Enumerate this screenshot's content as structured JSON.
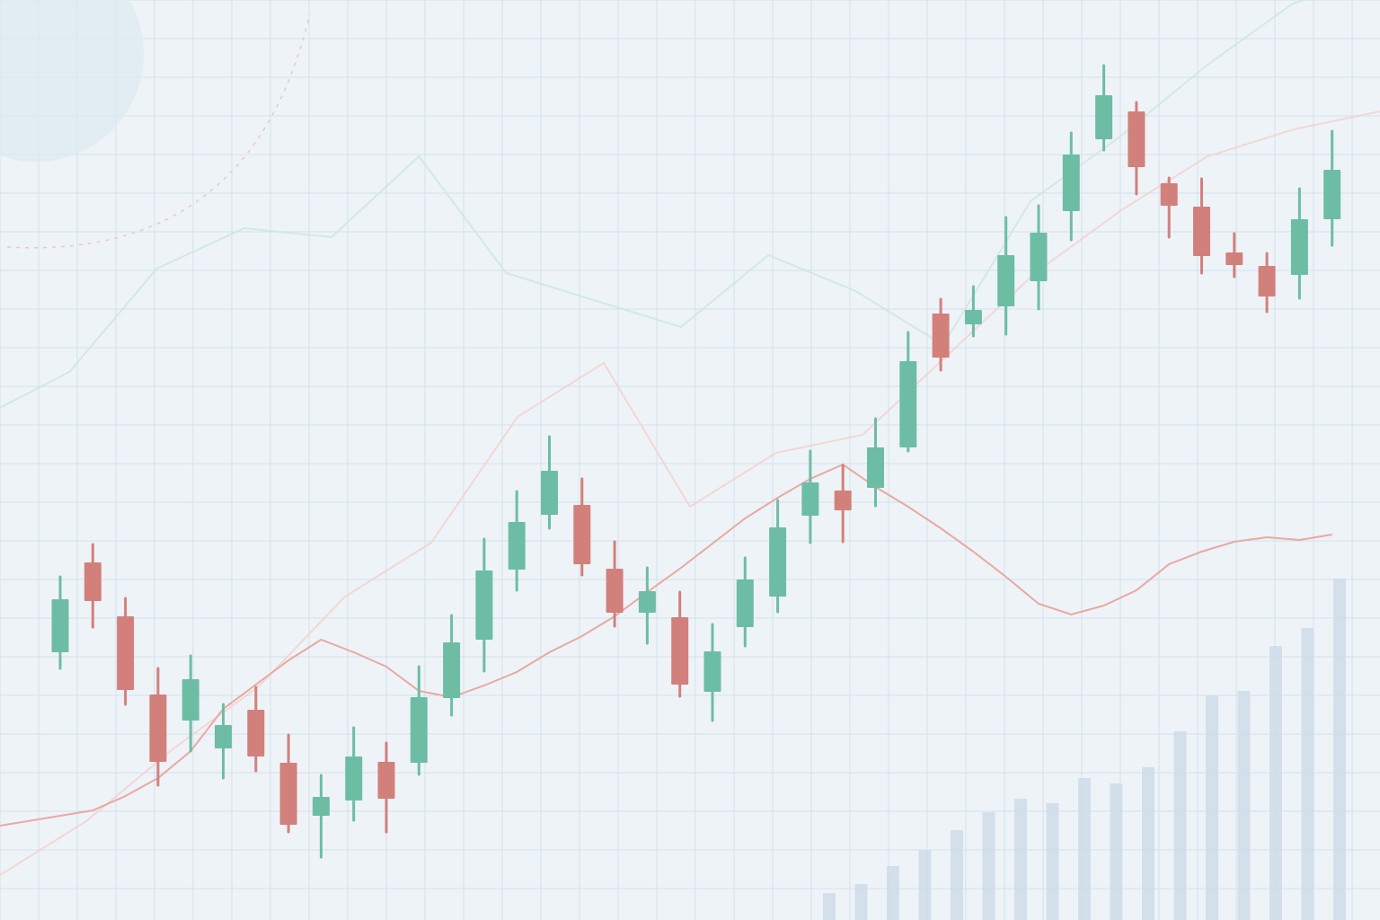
{
  "colors": {
    "background": "#eef3f7",
    "grid": "#d3e2ec",
    "up": "#6dbda5",
    "down": "#d2807c",
    "volume": "#c9dae7",
    "faint_line_teal": "#bfe0db",
    "faint_line_red": "#efc3bf"
  },
  "chart_data": {
    "type": "candlestick",
    "grid": true,
    "axes_visible": false,
    "ylim": [
      0,
      1024
    ],
    "candles": [
      {
        "open": 298,
        "close": 357,
        "high": 382,
        "low": 280
      },
      {
        "open": 398,
        "close": 355,
        "high": 418,
        "low": 326
      },
      {
        "open": 338,
        "close": 256,
        "high": 358,
        "low": 240
      },
      {
        "open": 251,
        "close": 176,
        "high": 280,
        "low": 150
      },
      {
        "open": 222,
        "close": 268,
        "high": 294,
        "low": 188
      },
      {
        "open": 191,
        "close": 217,
        "high": 240,
        "low": 158
      },
      {
        "open": 234,
        "close": 182,
        "high": 259,
        "low": 166
      },
      {
        "open": 175,
        "close": 106,
        "high": 206,
        "low": 98
      },
      {
        "open": 116,
        "close": 137,
        "high": 161,
        "low": 70
      },
      {
        "open": 133,
        "close": 182,
        "high": 214,
        "low": 111
      },
      {
        "open": 176,
        "close": 135,
        "high": 197,
        "low": 98
      },
      {
        "open": 175,
        "close": 248,
        "high": 282,
        "low": 162
      },
      {
        "open": 247,
        "close": 309,
        "high": 339,
        "low": 228
      },
      {
        "open": 312,
        "close": 389,
        "high": 424,
        "low": 277
      },
      {
        "open": 390,
        "close": 443,
        "high": 477,
        "low": 367
      },
      {
        "open": 451,
        "close": 500,
        "high": 538,
        "low": 436
      },
      {
        "open": 462,
        "close": 396,
        "high": 491,
        "low": 384
      },
      {
        "open": 391,
        "close": 342,
        "high": 421,
        "low": 327
      },
      {
        "open": 342,
        "close": 366,
        "high": 392,
        "low": 308
      },
      {
        "open": 337,
        "close": 262,
        "high": 365,
        "low": 249
      },
      {
        "open": 254,
        "close": 299,
        "high": 329,
        "low": 222
      },
      {
        "open": 326,
        "close": 379,
        "high": 403,
        "low": 305
      },
      {
        "open": 360,
        "close": 437,
        "high": 467,
        "low": 343
      },
      {
        "open": 450,
        "close": 487,
        "high": 522,
        "low": 420
      },
      {
        "open": 478,
        "close": 456,
        "high": 506,
        "low": 421
      },
      {
        "open": 481,
        "close": 526,
        "high": 558,
        "low": 461
      },
      {
        "open": 526,
        "close": 622,
        "high": 654,
        "low": 522
      },
      {
        "open": 675,
        "close": 626,
        "high": 691,
        "low": 612
      },
      {
        "open": 663,
        "close": 679,
        "high": 705,
        "low": 650
      },
      {
        "open": 683,
        "close": 740,
        "high": 782,
        "low": 652
      },
      {
        "open": 711,
        "close": 765,
        "high": 795,
        "low": 680
      },
      {
        "open": 789,
        "close": 852,
        "high": 876,
        "low": 757
      },
      {
        "open": 869,
        "close": 918,
        "high": 951,
        "low": 857
      },
      {
        "open": 900,
        "close": 838,
        "high": 910,
        "low": 808
      },
      {
        "open": 820,
        "close": 795,
        "high": 826,
        "low": 760
      },
      {
        "open": 794,
        "close": 739,
        "high": 825,
        "low": 720
      },
      {
        "open": 743,
        "close": 729,
        "high": 764,
        "low": 716
      },
      {
        "open": 728,
        "close": 694,
        "high": 742,
        "low": 677
      },
      {
        "open": 718,
        "close": 780,
        "high": 814,
        "low": 692
      },
      {
        "open": 780,
        "close": 835,
        "high": 878,
        "low": 751
      }
    ],
    "overlay_lines": [
      {
        "role": "moving-average",
        "color": "#e9a9a3",
        "values": [
          105,
          122,
          138,
          158,
          188,
          235,
          262,
          289,
          312,
          298,
          282,
          255,
          248,
          261,
          276,
          298,
          316,
          338,
          365,
          391,
          419,
          447,
          470,
          491,
          507,
          482,
          460,
          436,
          410,
          382,
          352,
          340,
          350,
          367,
          396,
          410,
          421,
          426,
          423,
          429
        ]
      },
      {
        "role": "background-line-teal",
        "color": "#c9e6e1",
        "values": [
          560,
          610,
          725,
          770,
          760,
          850,
          720,
          690,
          660,
          740,
          700,
          640,
          800,
          870,
          950,
          1020,
          1050
        ]
      },
      {
        "role": "background-line-red",
        "color": "#f2d0cc",
        "values": [
          50,
          110,
          190,
          260,
          360,
          420,
          560,
          620,
          460,
          520,
          540,
          630,
          720,
          790,
          850,
          880,
          900
        ]
      }
    ],
    "volume": [
      30,
      40,
      60,
      78,
      100,
      120,
      135,
      130,
      158,
      152,
      170,
      210,
      250,
      255,
      305,
      325,
      380
    ]
  }
}
